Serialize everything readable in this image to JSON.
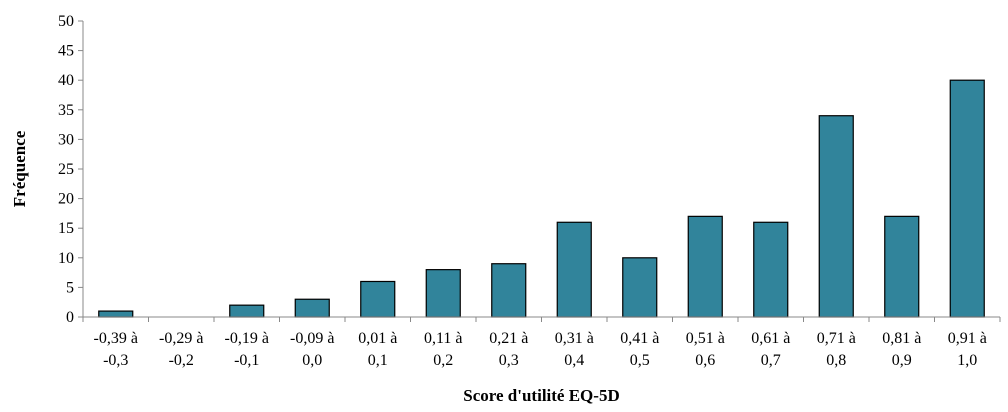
{
  "chart_data": {
    "type": "bar",
    "xlabel": "Score d'utilité EQ-5D",
    "ylabel": "Fréquence",
    "ylim": [
      0,
      50
    ],
    "yticks": [
      0,
      5,
      10,
      15,
      20,
      25,
      30,
      35,
      40,
      45,
      50
    ],
    "grid": false,
    "legend": "none",
    "categories": [
      [
        "-0,39 à",
        "-0,3"
      ],
      [
        "-0,29 à",
        "-0,2"
      ],
      [
        "-0,19 à",
        "-0,1"
      ],
      [
        "-0,09 à",
        "0,0"
      ],
      [
        "0,01 à",
        "0,1"
      ],
      [
        "0,11 à",
        "0,2"
      ],
      [
        "0,21 à",
        "0,3"
      ],
      [
        "0,31 à",
        "0,4"
      ],
      [
        "0,41 à",
        "0,5"
      ],
      [
        "0,51 à",
        "0,6"
      ],
      [
        "0,61 à",
        "0,7"
      ],
      [
        "0,71 à",
        "0,8"
      ],
      [
        "0,81 à",
        "0,9"
      ],
      [
        "0,91 à",
        "1,0"
      ]
    ],
    "values": [
      1,
      0,
      2,
      3,
      6,
      8,
      9,
      16,
      10,
      17,
      16,
      34,
      17,
      40
    ],
    "bar_color": "#31849B",
    "bar_edge_color": "#000000"
  }
}
